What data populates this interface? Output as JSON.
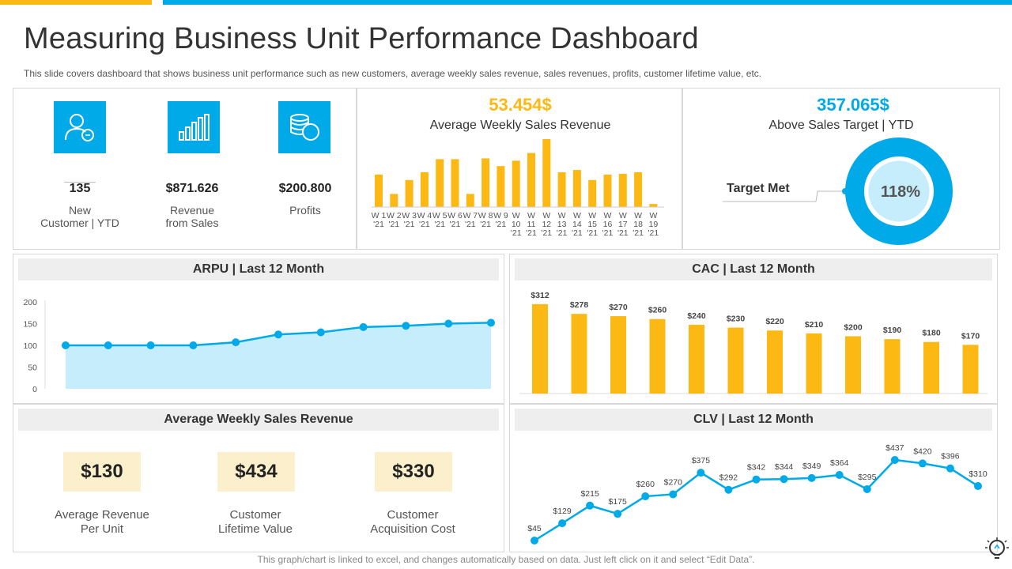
{
  "header": {
    "title": "Measuring Business Unit Performance Dashboard",
    "subtitle": "This slide covers dashboard that shows business unit performance such as new customers, average weekly sales revenue, sales revenues, profits, customer lifetime value, etc."
  },
  "kpis": [
    {
      "value": "135",
      "label_line1": "New",
      "label_line2": "Customer | YTD",
      "icon": "users-icon"
    },
    {
      "value": "$871.626",
      "label_line1": "Revenue",
      "label_line2": "from Sales",
      "icon": "bar-chart-icon"
    },
    {
      "value": "$200.800",
      "label_line1": "Profits",
      "label_line2": "",
      "icon": "coins-icon"
    }
  ],
  "weekly_panel": {
    "value": "53.454$",
    "label": "Average Weekly Sales Revenue"
  },
  "target_panel": {
    "value": "357.065$",
    "label": "Above Sales Target | YTD",
    "target_label": "Target Met",
    "percent_label": "118%"
  },
  "arpu": {
    "title": "ARPU | Last 12 Month"
  },
  "cac": {
    "title": "CAC | Last 12 Month"
  },
  "avg_weekly": {
    "title": "Average Weekly Sales Revenue",
    "stats": [
      {
        "value": "$130",
        "label_line1": "Average Revenue",
        "label_line2": "Per Unit"
      },
      {
        "value": "$434",
        "label_line1": "Customer",
        "label_line2": "Lifetime Value"
      },
      {
        "value": "$330",
        "label_line1": "Customer",
        "label_line2": "Acquisition Cost"
      }
    ]
  },
  "clv": {
    "title": "CLV | Last 12 Month"
  },
  "footer": "This graph/chart is linked to excel, and changes automatically based on data. Just left click on it and select “Edit Data”.",
  "colors": {
    "yellow": "#FDB913",
    "blue": "#00A9E8",
    "light_blue": "#C6EDFB"
  },
  "chart_data": [
    {
      "id": "weekly",
      "type": "bar",
      "categories": [
        [
          "W 1",
          "'21"
        ],
        [
          "W 2",
          "'21"
        ],
        [
          "W 3",
          "'21"
        ],
        [
          "W 4",
          "'21"
        ],
        [
          "W 5",
          "'21"
        ],
        [
          "W 6",
          "'21"
        ],
        [
          "W 7",
          "'21"
        ],
        [
          "W 8",
          "'21"
        ],
        [
          "W 9",
          "'21"
        ],
        [
          "W",
          "10",
          "'21"
        ],
        [
          "W",
          "11",
          "'21"
        ],
        [
          "W",
          "12",
          "'21"
        ],
        [
          "W",
          "13",
          "'21"
        ],
        [
          "W",
          "14",
          "'21"
        ],
        [
          "W",
          "15",
          "'21"
        ],
        [
          "W",
          "16",
          "'21"
        ],
        [
          "W",
          "17",
          "'21"
        ],
        [
          "W",
          "18",
          "'21"
        ],
        [
          "W",
          "19",
          "'21"
        ]
      ],
      "tick_labels": [
        "W 1W 2W 3W 4W 5W 6W 7W 8W 9",
        "'21 '21 '21 '21 '21 '21 '21 '21 '21"
      ],
      "values": [
        42,
        17,
        35,
        45,
        62,
        62,
        17,
        63,
        53,
        60,
        70,
        88,
        45,
        48,
        35,
        42,
        43,
        45,
        4
      ],
      "ylim": [
        0,
        90
      ]
    },
    {
      "id": "arpu",
      "type": "area",
      "title": "ARPU | Last 12 Month",
      "x": [
        1,
        2,
        3,
        4,
        5,
        6,
        7,
        8,
        9,
        10,
        11
      ],
      "values": [
        100,
        100,
        100,
        100,
        107,
        125,
        130,
        142,
        145,
        150,
        152
      ],
      "y_ticks": [
        "0",
        "50",
        "100",
        "150",
        "200"
      ],
      "ylim": [
        0,
        200
      ]
    },
    {
      "id": "cac",
      "type": "bar",
      "title": "CAC | Last 12 Month",
      "values": [
        312,
        278,
        270,
        260,
        240,
        230,
        220,
        210,
        200,
        190,
        180,
        170
      ],
      "labels": [
        "$312",
        "$278",
        "$270",
        "$260",
        "$240",
        "$230",
        "$220",
        "$210",
        "$200",
        "$190",
        "$180",
        "$170"
      ],
      "ylim": [
        0,
        360
      ]
    },
    {
      "id": "clv",
      "type": "line",
      "title": "CLV | Last 12 Month",
      "values": [
        45,
        129,
        215,
        175,
        260,
        270,
        375,
        292,
        342,
        344,
        349,
        364,
        295,
        437,
        420,
        396,
        310
      ],
      "labels": [
        "$45",
        "$129",
        "$215",
        "$175",
        "$260",
        "$270",
        "$375",
        "$292",
        "$342",
        "$344",
        "$349",
        "$364",
        "$295",
        "$437",
        "$420",
        "$396",
        "$310"
      ],
      "ylim": [
        0,
        460
      ]
    },
    {
      "id": "target",
      "type": "pie",
      "values": [
        118
      ],
      "labels": [
        "118%"
      ]
    }
  ]
}
